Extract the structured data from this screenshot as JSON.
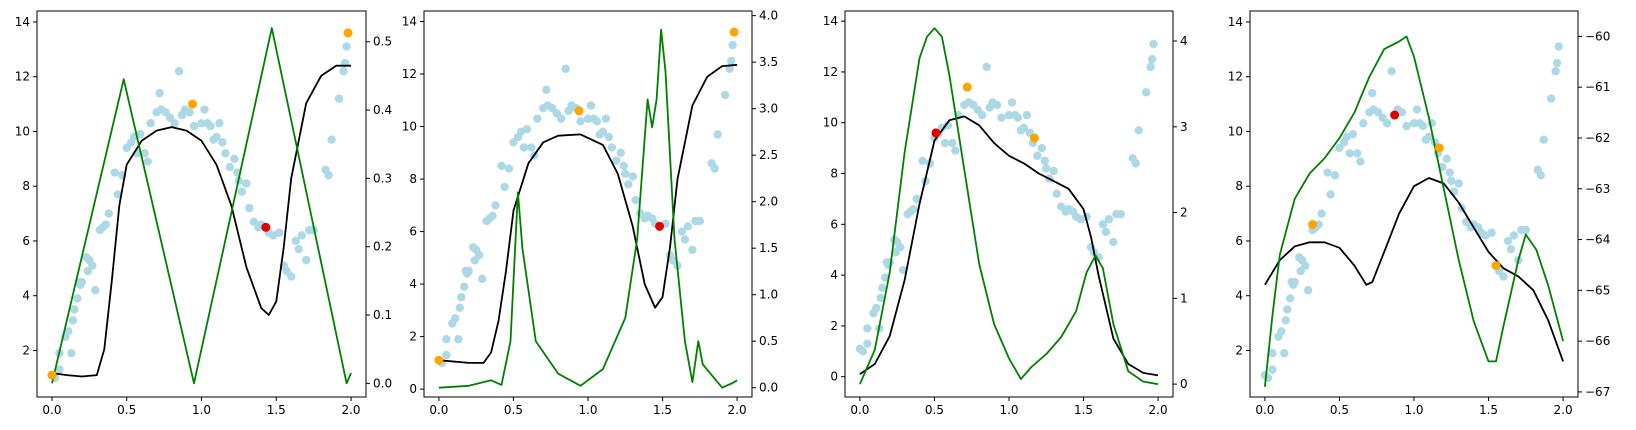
{
  "chart_data": [
    {
      "type": "scatter",
      "title": "",
      "xlim": [
        -0.1,
        2.1
      ],
      "ylim": [
        0.3,
        14.4
      ],
      "y2lim": [
        -0.02,
        0.545
      ],
      "xticks": [
        0.0,
        0.5,
        1.0,
        1.5,
        2.0
      ],
      "xtick_labels": [
        "0.0",
        "0.5",
        "1.0",
        "1.5",
        "2.0"
      ],
      "yticks": [
        2,
        4,
        6,
        8,
        10,
        12,
        14
      ],
      "ytick_labels": [
        "2",
        "4",
        "6",
        "8",
        "10",
        "12",
        "14"
      ],
      "y2ticks": [
        0.0,
        0.1,
        0.2,
        0.3,
        0.4,
        0.5
      ],
      "y2tick_labels": [
        "0.0",
        "0.1",
        "0.2",
        "0.3",
        "0.4",
        "0.5"
      ],
      "black_curve": {
        "axis": "right",
        "color": "#000000",
        "points": [
          [
            0,
            0.015
          ],
          [
            0.1,
            0.012
          ],
          [
            0.2,
            0.01
          ],
          [
            0.3,
            0.012
          ],
          [
            0.35,
            0.05
          ],
          [
            0.4,
            0.15
          ],
          [
            0.45,
            0.26
          ],
          [
            0.5,
            0.32
          ],
          [
            0.6,
            0.355
          ],
          [
            0.7,
            0.37
          ],
          [
            0.8,
            0.375
          ],
          [
            0.9,
            0.37
          ],
          [
            1.0,
            0.355
          ],
          [
            1.1,
            0.32
          ],
          [
            1.2,
            0.26
          ],
          [
            1.3,
            0.17
          ],
          [
            1.4,
            0.11
          ],
          [
            1.45,
            0.1
          ],
          [
            1.5,
            0.12
          ],
          [
            1.55,
            0.2
          ],
          [
            1.6,
            0.3
          ],
          [
            1.7,
            0.41
          ],
          [
            1.8,
            0.45
          ],
          [
            1.9,
            0.465
          ],
          [
            2.0,
            0.465
          ]
        ]
      },
      "green_curve": {
        "axis": "right",
        "color": "#008000",
        "points": [
          [
            0,
            0.0
          ],
          [
            0.48,
            0.445
          ],
          [
            0.95,
            0.0
          ],
          [
            1.47,
            0.52
          ],
          [
            1.97,
            0.0
          ],
          [
            2.0,
            0.015
          ]
        ]
      },
      "orange_points": [
        [
          0.0,
          1.1
        ],
        [
          0.94,
          11.0
        ],
        [
          1.98,
          13.6
        ]
      ],
      "red_points": [
        [
          1.43,
          6.5
        ]
      ]
    },
    {
      "type": "scatter",
      "title": "",
      "xlim": [
        -0.1,
        2.1
      ],
      "ylim": [
        -0.3,
        14.4
      ],
      "y2lim": [
        -0.1,
        4.05
      ],
      "xticks": [
        0.0,
        0.5,
        1.0,
        1.5,
        2.0
      ],
      "xtick_labels": [
        "0.0",
        "0.5",
        "1.0",
        "1.5",
        "2.0"
      ],
      "yticks": [
        0,
        2,
        4,
        6,
        8,
        10,
        12,
        14
      ],
      "ytick_labels": [
        "0",
        "2",
        "4",
        "6",
        "8",
        "10",
        "12",
        "14"
      ],
      "y2ticks": [
        0.0,
        0.5,
        1.0,
        1.5,
        2.0,
        2.5,
        3.0,
        3.5,
        4.0
      ],
      "y2tick_labels": [
        "0.0",
        "0.5",
        "1.0",
        "1.5",
        "2.0",
        "2.5",
        "3.0",
        "3.5",
        "4.0"
      ],
      "black_curve": {
        "axis": "left",
        "color": "#000000",
        "points": [
          [
            0,
            1.1
          ],
          [
            0.2,
            1.0
          ],
          [
            0.3,
            1.0
          ],
          [
            0.35,
            1.4
          ],
          [
            0.4,
            2.6
          ],
          [
            0.45,
            4.5
          ],
          [
            0.5,
            6.8
          ],
          [
            0.6,
            8.6
          ],
          [
            0.7,
            9.4
          ],
          [
            0.8,
            9.65
          ],
          [
            0.95,
            9.7
          ],
          [
            1.1,
            9.3
          ],
          [
            1.2,
            8.2
          ],
          [
            1.3,
            6.2
          ],
          [
            1.38,
            4.0
          ],
          [
            1.45,
            3.1
          ],
          [
            1.5,
            3.5
          ],
          [
            1.55,
            5.4
          ],
          [
            1.6,
            8.0
          ],
          [
            1.7,
            10.8
          ],
          [
            1.8,
            11.9
          ],
          [
            1.9,
            12.3
          ],
          [
            2.0,
            12.35
          ]
        ]
      },
      "green_curve": {
        "axis": "right",
        "color": "#008000",
        "points": [
          [
            0,
            0.0
          ],
          [
            0.2,
            0.02
          ],
          [
            0.35,
            0.08
          ],
          [
            0.42,
            0.03
          ],
          [
            0.48,
            0.5
          ],
          [
            0.53,
            2.1
          ],
          [
            0.56,
            1.5
          ],
          [
            0.65,
            0.5
          ],
          [
            0.8,
            0.15
          ],
          [
            0.95,
            0.02
          ],
          [
            1.1,
            0.2
          ],
          [
            1.25,
            0.75
          ],
          [
            1.33,
            1.6
          ],
          [
            1.4,
            3.1
          ],
          [
            1.43,
            2.8
          ],
          [
            1.46,
            3.1
          ],
          [
            1.49,
            3.85
          ],
          [
            1.52,
            3.4
          ],
          [
            1.58,
            1.6
          ],
          [
            1.65,
            0.5
          ],
          [
            1.7,
            0.06
          ],
          [
            1.74,
            0.5
          ],
          [
            1.77,
            0.25
          ],
          [
            1.9,
            0.0
          ],
          [
            1.97,
            0.05
          ],
          [
            2.0,
            0.08
          ]
        ]
      },
      "orange_points": [
        [
          0.0,
          1.1
        ],
        [
          0.94,
          10.6
        ],
        [
          1.98,
          13.6
        ]
      ],
      "red_points": [
        [
          1.48,
          6.2
        ]
      ]
    },
    {
      "type": "scatter",
      "title": "",
      "xlim": [
        -0.1,
        2.1
      ],
      "ylim": [
        -0.8,
        14.4
      ],
      "y2lim": [
        -0.15,
        4.35
      ],
      "xticks": [
        0.0,
        0.5,
        1.0,
        1.5,
        2.0
      ],
      "xtick_labels": [
        "0.0",
        "0.5",
        "1.0",
        "1.5",
        "2.0"
      ],
      "yticks": [
        0,
        2,
        4,
        6,
        8,
        10,
        12,
        14
      ],
      "ytick_labels": [
        "0",
        "2",
        "4",
        "6",
        "8",
        "10",
        "12",
        "14"
      ],
      "y2ticks": [
        0,
        1,
        2,
        3,
        4
      ],
      "y2tick_labels": [
        "0",
        "1",
        "2",
        "3",
        "4"
      ],
      "black_curve": {
        "axis": "left",
        "color": "#000000",
        "points": [
          [
            0,
            0.1
          ],
          [
            0.1,
            0.5
          ],
          [
            0.2,
            1.6
          ],
          [
            0.3,
            3.8
          ],
          [
            0.4,
            6.8
          ],
          [
            0.5,
            9.3
          ],
          [
            0.6,
            10.1
          ],
          [
            0.7,
            10.25
          ],
          [
            0.8,
            9.9
          ],
          [
            0.9,
            9.2
          ],
          [
            1.0,
            8.7
          ],
          [
            1.1,
            8.4
          ],
          [
            1.2,
            8.0
          ],
          [
            1.3,
            7.7
          ],
          [
            1.4,
            7.4
          ],
          [
            1.5,
            6.6
          ],
          [
            1.55,
            5.5
          ],
          [
            1.6,
            4.0
          ],
          [
            1.7,
            1.5
          ],
          [
            1.8,
            0.5
          ],
          [
            1.9,
            0.15
          ],
          [
            2.0,
            0.05
          ]
        ]
      },
      "green_curve": {
        "axis": "right",
        "color": "#008000",
        "points": [
          [
            0,
            0.0
          ],
          [
            0.1,
            0.4
          ],
          [
            0.2,
            1.3
          ],
          [
            0.3,
            2.7
          ],
          [
            0.4,
            3.8
          ],
          [
            0.45,
            4.05
          ],
          [
            0.5,
            4.15
          ],
          [
            0.55,
            4.05
          ],
          [
            0.6,
            3.6
          ],
          [
            0.7,
            2.5
          ],
          [
            0.8,
            1.4
          ],
          [
            0.9,
            0.7
          ],
          [
            1.0,
            0.3
          ],
          [
            1.08,
            0.06
          ],
          [
            1.15,
            0.2
          ],
          [
            1.25,
            0.35
          ],
          [
            1.35,
            0.55
          ],
          [
            1.45,
            0.85
          ],
          [
            1.52,
            1.3
          ],
          [
            1.58,
            1.5
          ],
          [
            1.63,
            1.35
          ],
          [
            1.7,
            0.7
          ],
          [
            1.8,
            0.15
          ],
          [
            1.9,
            0.03
          ],
          [
            2.0,
            0.0
          ]
        ]
      },
      "orange_points": [
        [
          0.72,
          11.4
        ],
        [
          1.17,
          9.4
        ]
      ],
      "red_points": [
        [
          0.51,
          9.6
        ]
      ]
    },
    {
      "type": "scatter",
      "title": "",
      "xlim": [
        -0.1,
        2.1
      ],
      "ylim": [
        0.3,
        14.4
      ],
      "y2lim": [
        -67.1,
        -59.5
      ],
      "xticks": [
        0.0,
        0.5,
        1.0,
        1.5,
        2.0
      ],
      "xtick_labels": [
        "0.0",
        "0.5",
        "1.0",
        "1.5",
        "2.0"
      ],
      "yticks": [
        2,
        4,
        6,
        8,
        10,
        12,
        14
      ],
      "ytick_labels": [
        "2",
        "4",
        "6",
        "8",
        "10",
        "12",
        "14"
      ],
      "y2ticks": [
        -67,
        -66,
        -65,
        -64,
        -63,
        -62,
        -61,
        -60
      ],
      "y2tick_labels": [
        "−67",
        "−66",
        "−65",
        "−64",
        "−63",
        "−62",
        "−61",
        "−60"
      ],
      "black_curve": {
        "axis": "left",
        "color": "#000000",
        "points": [
          [
            0,
            4.4
          ],
          [
            0.1,
            5.3
          ],
          [
            0.2,
            5.8
          ],
          [
            0.3,
            5.95
          ],
          [
            0.4,
            5.95
          ],
          [
            0.5,
            5.75
          ],
          [
            0.6,
            5.1
          ],
          [
            0.68,
            4.4
          ],
          [
            0.72,
            4.5
          ],
          [
            0.8,
            5.6
          ],
          [
            0.9,
            7.0
          ],
          [
            1.0,
            8.0
          ],
          [
            1.1,
            8.3
          ],
          [
            1.2,
            8.1
          ],
          [
            1.3,
            7.4
          ],
          [
            1.4,
            6.5
          ],
          [
            1.5,
            5.6
          ],
          [
            1.6,
            5.0
          ],
          [
            1.7,
            4.7
          ],
          [
            1.8,
            4.2
          ],
          [
            1.9,
            3.1
          ],
          [
            2.0,
            1.6
          ]
        ]
      },
      "green_curve": {
        "axis": "right",
        "color": "#008000",
        "points": [
          [
            0,
            -66.9
          ],
          [
            0.05,
            -65.5
          ],
          [
            0.1,
            -64.3
          ],
          [
            0.2,
            -63.2
          ],
          [
            0.3,
            -62.7
          ],
          [
            0.4,
            -62.4
          ],
          [
            0.5,
            -62.0
          ],
          [
            0.6,
            -61.5
          ],
          [
            0.7,
            -60.8
          ],
          [
            0.8,
            -60.25
          ],
          [
            0.9,
            -60.1
          ],
          [
            0.95,
            -60.0
          ],
          [
            1.0,
            -60.4
          ],
          [
            1.1,
            -61.6
          ],
          [
            1.2,
            -63.0
          ],
          [
            1.3,
            -64.4
          ],
          [
            1.4,
            -65.6
          ],
          [
            1.5,
            -66.4
          ],
          [
            1.55,
            -66.4
          ],
          [
            1.6,
            -65.7
          ],
          [
            1.7,
            -64.4
          ],
          [
            1.75,
            -63.9
          ],
          [
            1.82,
            -64.2
          ],
          [
            1.9,
            -64.9
          ],
          [
            2.0,
            -66.0
          ]
        ]
      },
      "orange_points": [
        [
          0.32,
          6.6
        ],
        [
          1.17,
          9.4
        ],
        [
          1.55,
          5.1
        ]
      ],
      "red_points": [
        [
          0.87,
          10.6
        ]
      ]
    }
  ],
  "scatter_points": [
    [
      0.0,
      1.1
    ],
    [
      0.02,
      1.0
    ],
    [
      0.05,
      1.3
    ],
    [
      0.05,
      1.9
    ],
    [
      0.09,
      2.5
    ],
    [
      0.11,
      2.7
    ],
    [
      0.13,
      1.9
    ],
    [
      0.14,
      3.1
    ],
    [
      0.15,
      3.5
    ],
    [
      0.17,
      3.9
    ],
    [
      0.18,
      4.5
    ],
    [
      0.19,
      4.4
    ],
    [
      0.2,
      4.5
    ],
    [
      0.23,
      5.4
    ],
    [
      0.24,
      4.9
    ],
    [
      0.25,
      5.3
    ],
    [
      0.27,
      5.1
    ],
    [
      0.29,
      4.2
    ],
    [
      0.32,
      6.4
    ],
    [
      0.34,
      6.5
    ],
    [
      0.36,
      6.6
    ],
    [
      0.38,
      7.0
    ],
    [
      0.42,
      8.5
    ],
    [
      0.44,
      7.7
    ],
    [
      0.47,
      8.4
    ],
    [
      0.5,
      9.4
    ],
    [
      0.53,
      9.6
    ],
    [
      0.55,
      9.8
    ],
    [
      0.57,
      9.2
    ],
    [
      0.59,
      9.9
    ],
    [
      0.62,
      9.2
    ],
    [
      0.64,
      8.9
    ],
    [
      0.66,
      10.3
    ],
    [
      0.7,
      10.7
    ],
    [
      0.72,
      11.4
    ],
    [
      0.73,
      10.8
    ],
    [
      0.76,
      10.7
    ],
    [
      0.79,
      10.5
    ],
    [
      0.82,
      10.3
    ],
    [
      0.85,
      12.2
    ],
    [
      0.87,
      10.6
    ],
    [
      0.89,
      10.8
    ],
    [
      0.92,
      10.7
    ],
    [
      0.95,
      10.2
    ],
    [
      1.0,
      10.3
    ],
    [
      1.02,
      10.8
    ],
    [
      1.04,
      10.3
    ],
    [
      1.06,
      10.2
    ],
    [
      1.08,
      9.7
    ],
    [
      1.1,
      9.8
    ],
    [
      1.12,
      10.3
    ],
    [
      1.14,
      9.6
    ],
    [
      1.16,
      9.2
    ],
    [
      1.19,
      8.7
    ],
    [
      1.22,
      9.0
    ],
    [
      1.24,
      8.5
    ],
    [
      1.25,
      8.2
    ],
    [
      1.27,
      7.8
    ],
    [
      1.3,
      8.1
    ],
    [
      1.32,
      7.2
    ],
    [
      1.35,
      6.7
    ],
    [
      1.38,
      6.5
    ],
    [
      1.4,
      6.6
    ],
    [
      1.43,
      6.5
    ],
    [
      1.45,
      6.3
    ],
    [
      1.48,
      6.2
    ],
    [
      1.52,
      6.3
    ],
    [
      1.55,
      5.1
    ],
    [
      1.57,
      4.9
    ],
    [
      1.6,
      4.7
    ],
    [
      1.63,
      6.0
    ],
    [
      1.65,
      5.7
    ],
    [
      1.67,
      6.2
    ],
    [
      1.7,
      5.3
    ],
    [
      1.72,
      6.4
    ],
    [
      1.75,
      6.4
    ],
    [
      1.83,
      8.6
    ],
    [
      1.85,
      8.4
    ],
    [
      1.87,
      9.7
    ],
    [
      1.92,
      11.2
    ],
    [
      1.95,
      12.2
    ],
    [
      1.96,
      12.5
    ],
    [
      1.97,
      13.1
    ]
  ]
}
